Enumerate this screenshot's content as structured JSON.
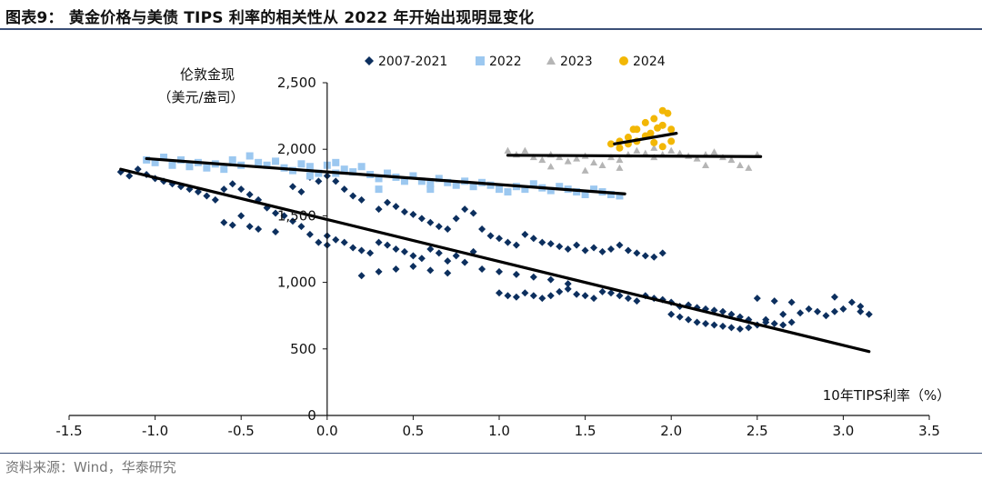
{
  "figure": {
    "title": "图表9：  黄金价格与美债 TIPS 利率的相关性从 2022 年开始出现明显变化",
    "source": "资料来源：Wind，华泰研究"
  },
  "chart_data": {
    "type": "scatter",
    "title": "",
    "ylabel_line1": "伦敦金现",
    "ylabel_line2": "（美元/盎司）",
    "xlabel": "10年TIPS利率（%）",
    "xlim": [
      -1.5,
      3.5
    ],
    "ylim": [
      0,
      2500
    ],
    "xticks": [
      "-1.5",
      "-1.0",
      "-0.5",
      "0.0",
      "0.5",
      "1.0",
      "1.5",
      "2.0",
      "2.5",
      "3.0",
      "3.5"
    ],
    "xtick_values": [
      -1.5,
      -1.0,
      -0.5,
      0.0,
      0.5,
      1.0,
      1.5,
      2.0,
      2.5,
      3.0,
      3.5
    ],
    "yticks": [
      "0",
      "500",
      "1,000",
      "1,500",
      "2,000",
      "2,500"
    ],
    "ytick_values": [
      0,
      500,
      1000,
      1500,
      2000,
      2500
    ],
    "legend_position": "top-center",
    "series": [
      {
        "name": "2007-2021",
        "color": "#0c2f5e",
        "marker": "diamond",
        "points": [
          [
            -1.2,
            1830
          ],
          [
            -1.15,
            1800
          ],
          [
            -1.1,
            1850
          ],
          [
            -1.05,
            1810
          ],
          [
            -1.0,
            1780
          ],
          [
            -0.95,
            1760
          ],
          [
            -0.9,
            1740
          ],
          [
            -0.85,
            1720
          ],
          [
            -0.8,
            1700
          ],
          [
            -0.75,
            1680
          ],
          [
            -0.7,
            1650
          ],
          [
            -0.65,
            1620
          ],
          [
            -0.6,
            1700
          ],
          [
            -0.55,
            1740
          ],
          [
            -0.5,
            1700
          ],
          [
            -0.45,
            1660
          ],
          [
            -0.4,
            1620
          ],
          [
            -0.35,
            1560
          ],
          [
            -0.3,
            1520
          ],
          [
            -0.25,
            1500
          ],
          [
            -0.2,
            1720
          ],
          [
            -0.15,
            1680
          ],
          [
            -0.1,
            1790
          ],
          [
            -0.05,
            1760
          ],
          [
            0.0,
            1800
          ],
          [
            0.05,
            1760
          ],
          [
            0.1,
            1700
          ],
          [
            0.15,
            1650
          ],
          [
            0.2,
            1620
          ],
          [
            -0.6,
            1450
          ],
          [
            -0.55,
            1430
          ],
          [
            -0.5,
            1500
          ],
          [
            -0.45,
            1420
          ],
          [
            -0.4,
            1400
          ],
          [
            -0.3,
            1380
          ],
          [
            -0.2,
            1460
          ],
          [
            -0.15,
            1420
          ],
          [
            -0.1,
            1360
          ],
          [
            -0.05,
            1300
          ],
          [
            0.0,
            1280
          ],
          [
            0.0,
            1350
          ],
          [
            0.05,
            1320
          ],
          [
            0.1,
            1300
          ],
          [
            0.15,
            1260
          ],
          [
            0.2,
            1240
          ],
          [
            0.25,
            1220
          ],
          [
            0.3,
            1300
          ],
          [
            0.35,
            1280
          ],
          [
            0.4,
            1250
          ],
          [
            0.45,
            1230
          ],
          [
            0.5,
            1200
          ],
          [
            0.55,
            1180
          ],
          [
            0.6,
            1250
          ],
          [
            0.65,
            1220
          ],
          [
            0.7,
            1160
          ],
          [
            0.75,
            1200
          ],
          [
            0.8,
            1150
          ],
          [
            0.85,
            1230
          ],
          [
            0.3,
            1550
          ],
          [
            0.35,
            1600
          ],
          [
            0.4,
            1570
          ],
          [
            0.45,
            1530
          ],
          [
            0.5,
            1510
          ],
          [
            0.55,
            1480
          ],
          [
            0.6,
            1450
          ],
          [
            0.65,
            1420
          ],
          [
            0.7,
            1400
          ],
          [
            0.75,
            1480
          ],
          [
            0.8,
            1550
          ],
          [
            0.85,
            1520
          ],
          [
            0.9,
            1400
          ],
          [
            0.95,
            1350
          ],
          [
            1.0,
            1330
          ],
          [
            1.05,
            1300
          ],
          [
            1.1,
            1280
          ],
          [
            1.15,
            1360
          ],
          [
            1.2,
            1330
          ],
          [
            1.25,
            1300
          ],
          [
            1.3,
            1290
          ],
          [
            1.35,
            1270
          ],
          [
            1.4,
            1250
          ],
          [
            1.45,
            1280
          ],
          [
            1.5,
            1240
          ],
          [
            1.55,
            1260
          ],
          [
            1.6,
            1230
          ],
          [
            1.65,
            1250
          ],
          [
            1.7,
            1280
          ],
          [
            1.75,
            1240
          ],
          [
            1.8,
            1220
          ],
          [
            1.85,
            1200
          ],
          [
            1.9,
            1190
          ],
          [
            1.95,
            1220
          ],
          [
            0.2,
            1050
          ],
          [
            0.3,
            1080
          ],
          [
            0.4,
            1100
          ],
          [
            0.5,
            1120
          ],
          [
            0.6,
            1090
          ],
          [
            0.7,
            1070
          ],
          [
            0.9,
            1100
          ],
          [
            1.0,
            1080
          ],
          [
            1.1,
            1060
          ],
          [
            1.2,
            1040
          ],
          [
            1.3,
            1020
          ],
          [
            1.4,
            990
          ],
          [
            1.0,
            920
          ],
          [
            1.05,
            900
          ],
          [
            1.1,
            890
          ],
          [
            1.15,
            920
          ],
          [
            1.2,
            900
          ],
          [
            1.25,
            880
          ],
          [
            1.3,
            900
          ],
          [
            1.35,
            930
          ],
          [
            1.4,
            950
          ],
          [
            1.45,
            910
          ],
          [
            1.5,
            900
          ],
          [
            1.55,
            880
          ],
          [
            1.6,
            930
          ],
          [
            1.65,
            920
          ],
          [
            1.7,
            900
          ],
          [
            1.75,
            880
          ],
          [
            1.8,
            860
          ],
          [
            1.85,
            900
          ],
          [
            1.9,
            880
          ],
          [
            1.95,
            870
          ],
          [
            2.0,
            850
          ],
          [
            2.05,
            820
          ],
          [
            2.1,
            830
          ],
          [
            2.15,
            810
          ],
          [
            2.2,
            800
          ],
          [
            2.25,
            790
          ],
          [
            2.3,
            780
          ],
          [
            2.35,
            760
          ],
          [
            2.4,
            740
          ],
          [
            2.45,
            720
          ],
          [
            2.0,
            760
          ],
          [
            2.05,
            740
          ],
          [
            2.1,
            720
          ],
          [
            2.15,
            700
          ],
          [
            2.2,
            690
          ],
          [
            2.25,
            680
          ],
          [
            2.3,
            670
          ],
          [
            2.35,
            660
          ],
          [
            2.4,
            650
          ],
          [
            2.45,
            660
          ],
          [
            2.5,
            680
          ],
          [
            2.55,
            700
          ],
          [
            2.6,
            690
          ],
          [
            2.65,
            680
          ],
          [
            2.7,
            700
          ],
          [
            2.5,
            880
          ],
          [
            2.6,
            860
          ],
          [
            2.7,
            850
          ],
          [
            2.8,
            800
          ],
          [
            2.85,
            780
          ],
          [
            2.9,
            750
          ],
          [
            2.95,
            780
          ],
          [
            3.0,
            800
          ],
          [
            3.05,
            850
          ],
          [
            3.1,
            820
          ],
          [
            3.15,
            760
          ],
          [
            2.75,
            770
          ],
          [
            2.65,
            760
          ],
          [
            2.55,
            720
          ],
          [
            2.95,
            890
          ],
          [
            3.1,
            780
          ]
        ]
      },
      {
        "name": "2022",
        "color": "#9cc8f0",
        "marker": "square",
        "points": [
          [
            -1.05,
            1920
          ],
          [
            -1.0,
            1900
          ],
          [
            -0.95,
            1940
          ],
          [
            -0.9,
            1880
          ],
          [
            -0.85,
            1920
          ],
          [
            -0.8,
            1870
          ],
          [
            -0.75,
            1900
          ],
          [
            -0.7,
            1860
          ],
          [
            -0.65,
            1890
          ],
          [
            -0.6,
            1850
          ],
          [
            -0.55,
            1920
          ],
          [
            -0.5,
            1880
          ],
          [
            -0.45,
            1950
          ],
          [
            -0.4,
            1900
          ],
          [
            -0.35,
            1880
          ],
          [
            -0.3,
            1910
          ],
          [
            -0.25,
            1860
          ],
          [
            -0.2,
            1840
          ],
          [
            -0.15,
            1890
          ],
          [
            -0.1,
            1870
          ],
          [
            -0.05,
            1820
          ],
          [
            0.0,
            1880
          ],
          [
            0.05,
            1900
          ],
          [
            0.1,
            1850
          ],
          [
            0.15,
            1830
          ],
          [
            0.2,
            1870
          ],
          [
            0.25,
            1810
          ],
          [
            0.3,
            1780
          ],
          [
            0.35,
            1820
          ],
          [
            0.4,
            1790
          ],
          [
            0.45,
            1760
          ],
          [
            0.5,
            1800
          ],
          [
            0.55,
            1760
          ],
          [
            0.6,
            1740
          ],
          [
            0.65,
            1780
          ],
          [
            0.7,
            1750
          ],
          [
            0.75,
            1730
          ],
          [
            0.8,
            1760
          ],
          [
            0.85,
            1720
          ],
          [
            0.9,
            1750
          ],
          [
            0.95,
            1730
          ],
          [
            1.0,
            1700
          ],
          [
            1.05,
            1680
          ],
          [
            1.1,
            1720
          ],
          [
            1.15,
            1700
          ],
          [
            1.2,
            1740
          ],
          [
            1.25,
            1710
          ],
          [
            1.3,
            1690
          ],
          [
            1.35,
            1720
          ],
          [
            1.4,
            1700
          ],
          [
            1.45,
            1680
          ],
          [
            1.5,
            1660
          ],
          [
            1.55,
            1700
          ],
          [
            1.6,
            1680
          ],
          [
            1.65,
            1660
          ],
          [
            1.7,
            1650
          ],
          [
            0.05,
            1820
          ],
          [
            -0.1,
            1800
          ],
          [
            0.3,
            1700
          ],
          [
            0.6,
            1700
          ]
        ]
      },
      {
        "name": "2023",
        "color": "#b5b5b5",
        "marker": "triangle",
        "points": [
          [
            1.05,
            1990
          ],
          [
            1.1,
            1960
          ],
          [
            1.15,
            1990
          ],
          [
            1.2,
            1940
          ],
          [
            1.25,
            1920
          ],
          [
            1.3,
            1960
          ],
          [
            1.35,
            1940
          ],
          [
            1.4,
            1910
          ],
          [
            1.45,
            1930
          ],
          [
            1.5,
            1950
          ],
          [
            1.55,
            1900
          ],
          [
            1.6,
            1880
          ],
          [
            1.65,
            1940
          ],
          [
            1.7,
            1920
          ],
          [
            1.75,
            1960
          ],
          [
            1.8,
            1990
          ],
          [
            1.85,
            1970
          ],
          [
            1.9,
            1940
          ],
          [
            1.95,
            1960
          ],
          [
            2.0,
            1990
          ],
          [
            2.05,
            1970
          ],
          [
            2.1,
            1950
          ],
          [
            2.15,
            1930
          ],
          [
            2.2,
            1960
          ],
          [
            2.25,
            1980
          ],
          [
            2.3,
            1940
          ],
          [
            2.35,
            1920
          ],
          [
            2.4,
            1880
          ],
          [
            2.45,
            1860
          ],
          [
            2.5,
            1960
          ],
          [
            1.3,
            1870
          ],
          [
            1.5,
            1840
          ],
          [
            1.7,
            1860
          ],
          [
            2.2,
            1880
          ],
          [
            1.9,
            2010
          ]
        ]
      },
      {
        "name": "2024",
        "color": "#f2b705",
        "marker": "circle",
        "points": [
          [
            1.65,
            2040
          ],
          [
            1.7,
            2060
          ],
          [
            1.75,
            2090
          ],
          [
            1.8,
            2150
          ],
          [
            1.85,
            2200
          ],
          [
            1.9,
            2230
          ],
          [
            1.95,
            2180
          ],
          [
            2.0,
            2150
          ],
          [
            1.85,
            2100
          ],
          [
            1.8,
            2060
          ],
          [
            1.9,
            2050
          ],
          [
            1.95,
            2020
          ],
          [
            2.0,
            2060
          ],
          [
            1.75,
            2040
          ],
          [
            1.7,
            2010
          ],
          [
            1.95,
            2290
          ],
          [
            1.98,
            2270
          ],
          [
            1.88,
            2120
          ],
          [
            1.78,
            2150
          ],
          [
            1.92,
            2160
          ]
        ]
      }
    ],
    "trendlines": [
      {
        "series": "2007-2021",
        "x": [
          -1.2,
          3.15
        ],
        "y": [
          1850,
          480
        ]
      },
      {
        "series": "2022",
        "x": [
          -1.05,
          1.73
        ],
        "y": [
          1930,
          1665
        ]
      },
      {
        "series": "2023",
        "x": [
          1.05,
          2.52
        ],
        "y": [
          1955,
          1945
        ]
      },
      {
        "series": "2024",
        "x": [
          1.67,
          2.03
        ],
        "y": [
          2040,
          2120
        ]
      }
    ]
  }
}
